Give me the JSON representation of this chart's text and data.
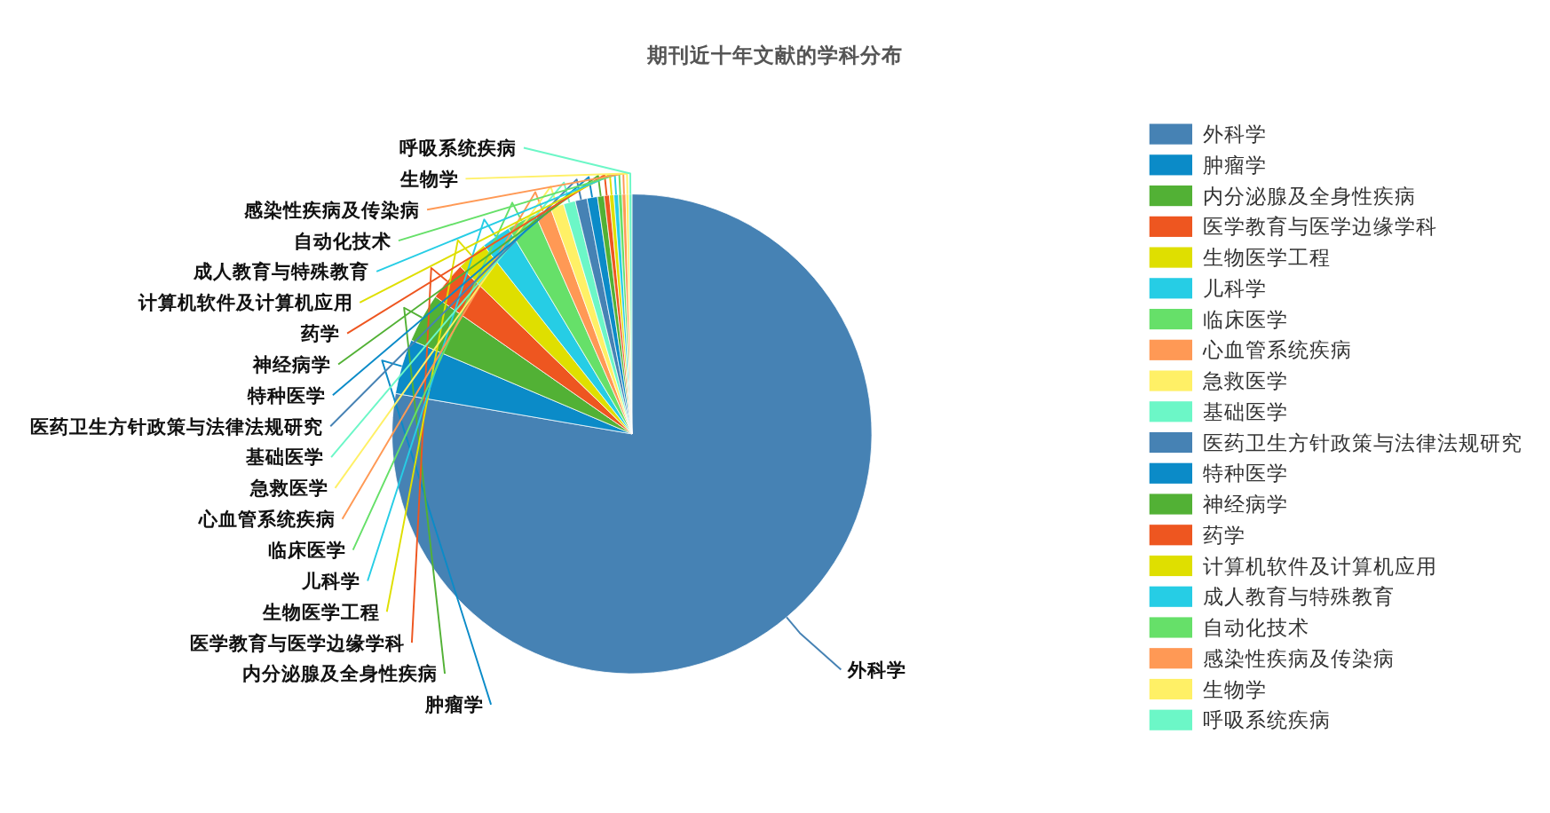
{
  "chart_data": {
    "type": "pie",
    "title": "期刊近十年文献的学科分布",
    "legend": "right",
    "categories": [
      "外科学",
      "肿瘤学",
      "内分泌腺及全身性疾病",
      "医学教育与医学边缘学科",
      "生物医学工程",
      "儿科学",
      "临床医学",
      "心血管系统疾病",
      "急救医学",
      "基础医学",
      "医药卫生方针政策与法律法规研究",
      "特种医学",
      "神经病学",
      "药学",
      "计算机软件及计算机应用",
      "成人教育与特殊教育",
      "自动化技术",
      "感染性疾病及传染病",
      "生物学",
      "呼吸系统疾病"
    ],
    "values": [
      77.7,
      3.7,
      3.3,
      2.6,
      2.1,
      2.0,
      2.0,
      1.1,
      0.9,
      0.8,
      0.8,
      0.7,
      0.45,
      0.35,
      0.3,
      0.3,
      0.25,
      0.25,
      0.2,
      0.2
    ],
    "colors": [
      "#4682b4",
      "#0b8bc8",
      "#52b135",
      "#ee5620",
      "#dfdf00",
      "#26cde5",
      "#66e069",
      "#ff9955",
      "#fff066",
      "#6cf7c7",
      "#4682b4",
      "#0b8bc8",
      "#52b135",
      "#ee5620",
      "#dfdf00",
      "#26cde5",
      "#66e069",
      "#ff9955",
      "#fff066",
      "#6cf7c7"
    ]
  }
}
